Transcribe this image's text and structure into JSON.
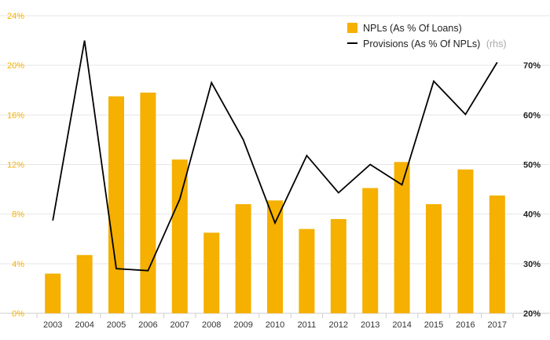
{
  "chart_data": {
    "type": "bar+line",
    "categories": [
      "2003",
      "2004",
      "2005",
      "2006",
      "2007",
      "2008",
      "2009",
      "2010",
      "2011",
      "2012",
      "2013",
      "2014",
      "2015",
      "2016",
      "2017"
    ],
    "series": [
      {
        "name": "NPLs (As % Of Loans)",
        "type": "bar",
        "axis": "left",
        "color": "#F5B000",
        "values": [
          3.2,
          4.7,
          17.5,
          17.8,
          12.4,
          6.5,
          8.8,
          9.1,
          6.8,
          7.6,
          10.1,
          12.2,
          8.8,
          11.6,
          9.5
        ]
      },
      {
        "name": "Provisions (As % Of NPLs)",
        "name_suffix": "(rhs)",
        "type": "line",
        "axis": "right",
        "color": "#000000",
        "values": [
          38.7,
          75.0,
          29.0,
          28.6,
          43.0,
          66.5,
          55.0,
          38.2,
          51.8,
          44.3,
          50.0,
          45.9,
          66.8,
          60.1,
          70.6
        ]
      }
    ],
    "y_left": {
      "ylim": [
        0,
        24
      ],
      "ticks": [
        0,
        4,
        8,
        12,
        16,
        20,
        24
      ],
      "tick_labels": [
        "0%",
        "4%",
        "8%",
        "12%",
        "16%",
        "20%",
        "24%"
      ]
    },
    "y_right": {
      "ylim": [
        20,
        80
      ],
      "ticks": [
        20,
        30,
        40,
        50,
        60,
        70
      ],
      "tick_labels": [
        "20%",
        "30%",
        "40%",
        "50%",
        "60%",
        "70%"
      ]
    },
    "grid": true,
    "legend_position": "top-right"
  },
  "colors": {
    "bar": "#F5B000",
    "line": "#000000",
    "left_axis_text": "#F5B000",
    "grid": "#e6e6e6"
  }
}
